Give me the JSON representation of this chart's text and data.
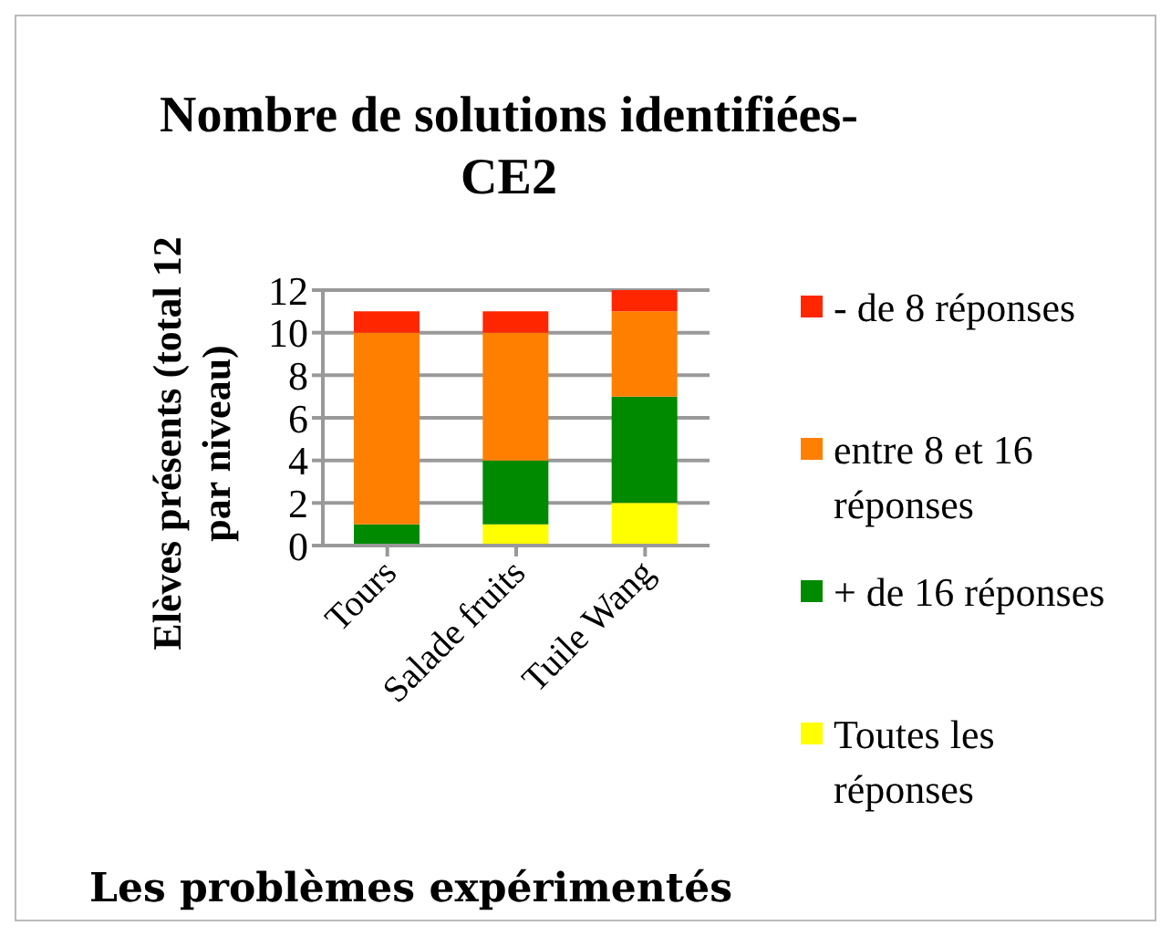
{
  "chart_data": {
    "type": "bar",
    "title": "Nombre de solutions identifiées-CE2",
    "xlabel": "Les problèmes expérimentés",
    "ylabel": "Elèves présents (total 12 par niveau)",
    "categories": [
      "Tours",
      "Salade fruits",
      "Tuile Wang"
    ],
    "stacked": true,
    "ylim": [
      0,
      12
    ],
    "yticks": [
      0,
      2,
      4,
      6,
      8,
      10,
      12
    ],
    "grid": "y",
    "legend": "right",
    "series": [
      {
        "name": "Toutes les réponses",
        "color": "#ffff00",
        "values": [
          0,
          1,
          2
        ]
      },
      {
        "name": "+ de 16 réponses",
        "color": "#008a00",
        "values": [
          1,
          3,
          5
        ]
      },
      {
        "name": "entre 8 et 16 réponses",
        "color": "#ff7f00",
        "values": [
          9,
          6,
          4
        ]
      },
      {
        "name": "- de 8 réponses",
        "color": "#ff2600",
        "values": [
          1,
          1,
          1
        ]
      }
    ]
  }
}
